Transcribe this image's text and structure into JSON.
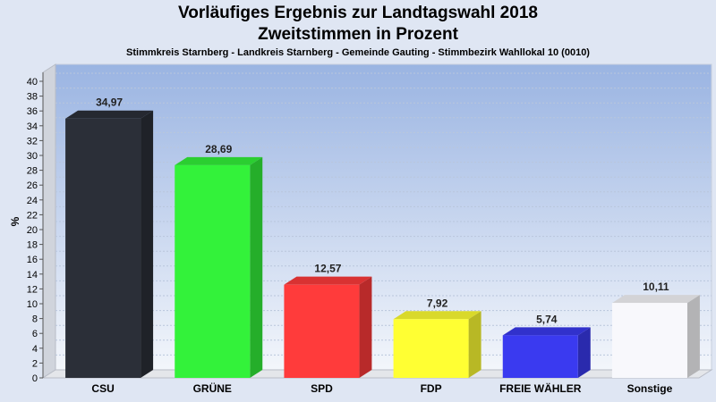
{
  "chart_data": {
    "type": "bar",
    "title": "Vorläufiges Ergebnis zur Landtagswahl 2018",
    "subtitle": "Zweitstimmen in Prozent",
    "caption": "Stimmkreis Starnberg - Landkreis Starnberg - Gemeinde Gauting - Stimmbezirk Wahllokal 10 (0010)",
    "ylabel": "%",
    "ylim": [
      0,
      40
    ],
    "yticks": [
      0,
      2,
      4,
      6,
      8,
      10,
      12,
      14,
      16,
      18,
      20,
      22,
      24,
      26,
      28,
      30,
      32,
      34,
      36,
      38,
      40
    ],
    "grid": true,
    "categories": [
      "CSU",
      "GRÜNE",
      "SPD",
      "FDP",
      "FREIE WÄHLER",
      "Sonstige"
    ],
    "values": [
      34.97,
      28.69,
      12.57,
      7.92,
      5.74,
      10.11
    ],
    "value_labels": [
      "34,97",
      "28,69",
      "12,57",
      "7,92",
      "5,74",
      "10,11"
    ],
    "colors": [
      "#2b2f38",
      "#33f23a",
      "#ff3b3b",
      "#ffff33",
      "#3a3af0",
      "#f8f8fc"
    ]
  }
}
